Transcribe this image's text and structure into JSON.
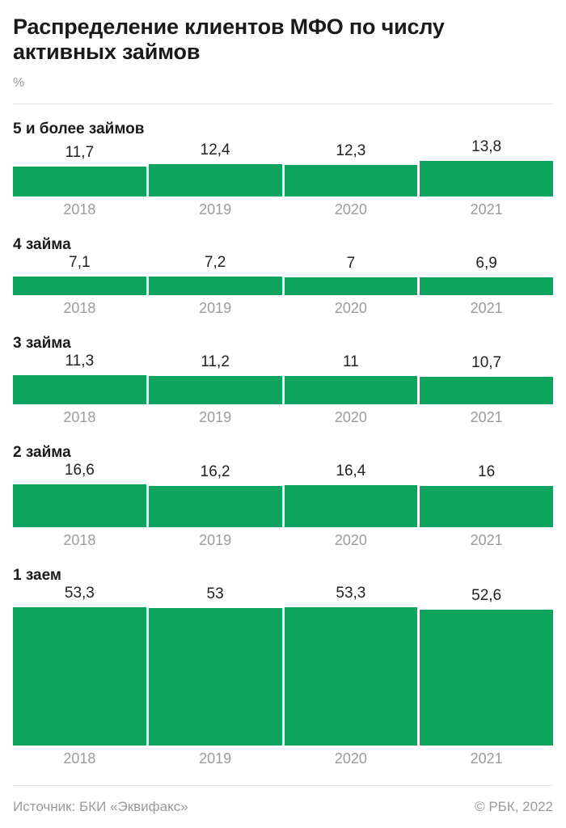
{
  "title": "Распределение клиентов МФО по числу активных займов",
  "unit_label": "%",
  "footer": {
    "source": "Источник: БКИ «Эквифакс»",
    "copyright": "© РБК, 2022"
  },
  "colors": {
    "bar": "#0CA45F",
    "title_text": "#1A1A1A",
    "muted_text": "#9B9B9B",
    "divider": "#E4E4E4"
  },
  "chart_data": {
    "type": "bar",
    "title": "Распределение клиентов МФО по числу активных займов",
    "unit": "%",
    "orientation": "vertical",
    "grid": false,
    "legend": "none",
    "categories": [
      "2018",
      "2019",
      "2020",
      "2021"
    ],
    "value_range": [
      0,
      55
    ],
    "groups": [
      {
        "label": "5 и более займов",
        "values": [
          11.7,
          12.4,
          12.3,
          13.8
        ],
        "display_values": [
          "11,7",
          "12,4",
          "12,3",
          "13,8"
        ]
      },
      {
        "label": "4 займа",
        "values": [
          7.1,
          7.2,
          7,
          6.9
        ],
        "display_values": [
          "7,1",
          "7,2",
          "7",
          "6,9"
        ]
      },
      {
        "label": "3 займа",
        "values": [
          11.3,
          11.2,
          11,
          10.7
        ],
        "display_values": [
          "11,3",
          "11,2",
          "11",
          "10,7"
        ]
      },
      {
        "label": "2 займа",
        "values": [
          16.6,
          16.2,
          16.4,
          16
        ],
        "display_values": [
          "16,6",
          "16,2",
          "16,4",
          "16"
        ]
      },
      {
        "label": "1 заем",
        "values": [
          53.3,
          53,
          53.3,
          52.6
        ],
        "display_values": [
          "53,3",
          "53",
          "53,3",
          "52,6"
        ]
      }
    ]
  }
}
